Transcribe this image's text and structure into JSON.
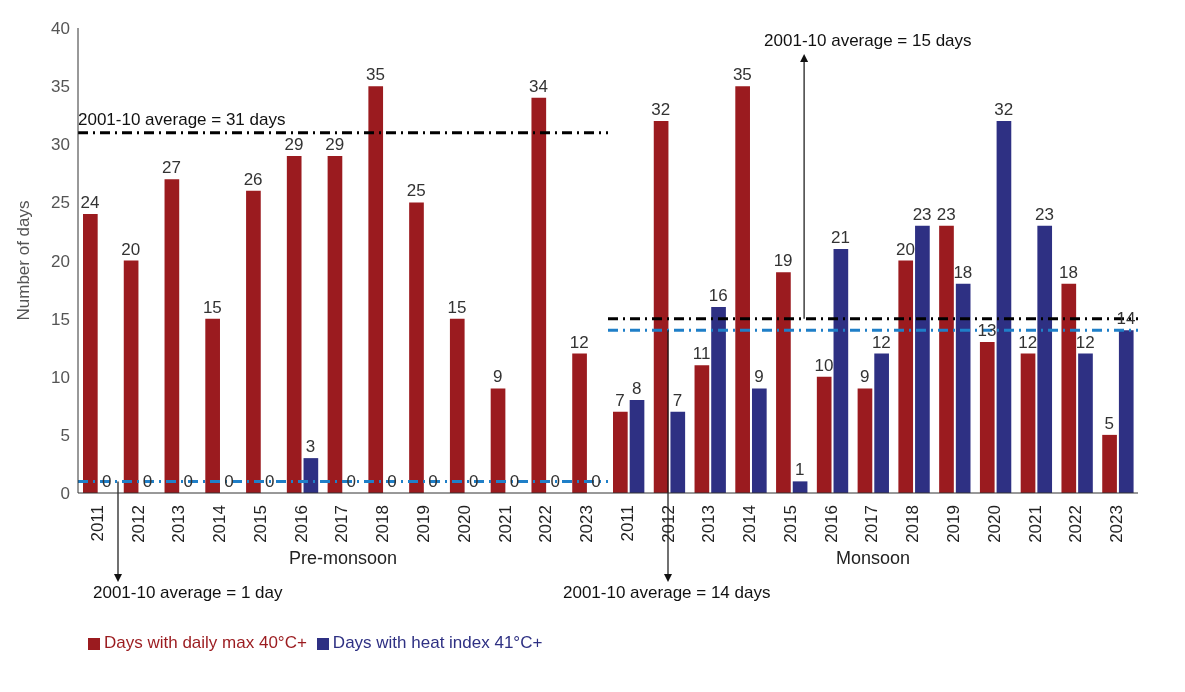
{
  "chart_data": {
    "type": "bar",
    "ylabel": "Number of days",
    "categories": [
      "2011",
      "2012",
      "2013",
      "2014",
      "2015",
      "2016",
      "2017",
      "2018",
      "2019",
      "2020",
      "2021",
      "2022",
      "2023",
      "2011",
      "2012",
      "2013",
      "2014",
      "2015",
      "2016",
      "2017",
      "2018",
      "2019",
      "2020",
      "2021",
      "2022",
      "2023"
    ],
    "series": [
      {
        "name": "Days with daily max 40°C+",
        "color": "#9b1b1f",
        "values": [
          24,
          20,
          27,
          15,
          26,
          29,
          29,
          35,
          25,
          15,
          9,
          34,
          12,
          7,
          32,
          11,
          35,
          19,
          10,
          9,
          20,
          23,
          13,
          12,
          18,
          5
        ]
      },
      {
        "name": "Days with heat index 41°C+",
        "color": "#2e3083",
        "values": [
          0,
          0,
          0,
          0,
          0,
          3,
          0,
          0,
          0,
          0,
          0,
          0,
          0,
          8,
          7,
          16,
          9,
          1,
          21,
          12,
          23,
          18,
          32,
          23,
          12,
          14
        ]
      }
    ],
    "ylim": [
      0,
      40
    ],
    "yticks": [
      0,
      5,
      10,
      15,
      20,
      25,
      30,
      35,
      40
    ],
    "grid": false,
    "data_labels": true,
    "legend": "bottom left",
    "ref_lines": [
      {
        "axis": "y",
        "value": 31,
        "label": "2001-10 average = 31 days",
        "color": "#000000",
        "line_style": "dashed"
      },
      {
        "axis": "y",
        "value": 1,
        "label": "2001-10 average = 1 day",
        "color": "#1f7fc8",
        "line_style": "dashed"
      },
      {
        "axis": "y",
        "value": 15,
        "label": "2001-10 average = 15 days",
        "color": "#000000",
        "line_style": "dashed"
      },
      {
        "axis": "y",
        "value": 14,
        "label": "2001-10 average = 14 days",
        "color": "#1f7fc8",
        "line_style": "dashed"
      }
    ],
    "annotations": [
      "Pre-monsoon",
      "Monsoon"
    ]
  }
}
